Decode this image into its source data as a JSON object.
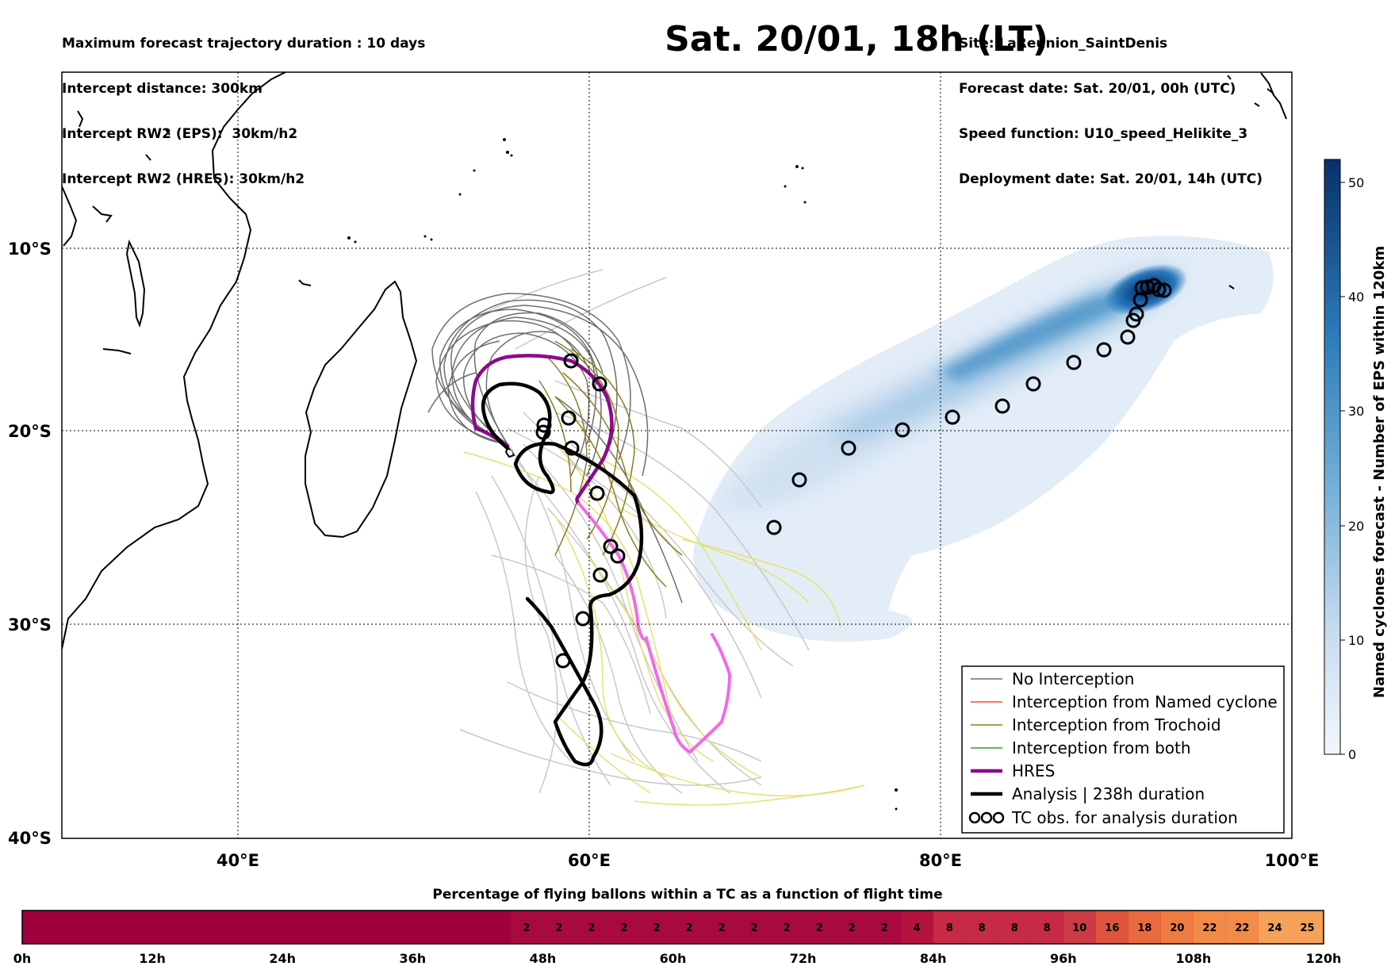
{
  "header": {
    "left": [
      "Maximum forecast trajectory duration : 10 days",
      "Intercept distance: 300km",
      "Intercept RW2 (EPS):  30km/h2",
      "Intercept RW2 (HRES): 30km/h2"
    ],
    "right": [
      "Site: LaReunion_SaintDenis",
      "Forecast date: Sat. 20/01, 00h (UTC)",
      "Speed function: U10_speed_Helikite_3",
      "Deployment date: Sat. 20/01, 14h (UTC)"
    ],
    "title": "Sat. 20/01, 18h (LT)"
  },
  "map": {
    "extent": {
      "lon": [
        30,
        100
      ],
      "lat": [
        -40,
        0
      ]
    },
    "lon_ticks": [
      {
        "value": 40,
        "label": "40°E"
      },
      {
        "value": 60,
        "label": "60°E"
      },
      {
        "value": 80,
        "label": "80°E"
      },
      {
        "value": 100,
        "label": "100°E"
      }
    ],
    "lat_ticks": [
      {
        "value": -10,
        "label": "10°S"
      },
      {
        "value": -20,
        "label": "20°S"
      },
      {
        "value": -30,
        "label": "30°S"
      },
      {
        "value": -40,
        "label": "40°S"
      }
    ],
    "gridlines": true,
    "colors": {
      "no_interception": "#6e6e6e",
      "interception_named_cyclone": "#e8561f",
      "interception_trochoid": "#8a7f1c",
      "interception_both": "#2ca02c",
      "hres": "#8b0a8b",
      "hres_late": "#f06ae8",
      "analysis": "#000000",
      "yellow_tracks": "#e8e070",
      "light_tracks": "#c8c8c8"
    }
  },
  "colorbar": {
    "label": "Named cyclones forecast - Number of EPS within 120km",
    "ticks": [
      "0",
      "10",
      "20",
      "30",
      "40",
      "50"
    ],
    "min": 0,
    "max": 52,
    "colors": [
      "#e9f1fa",
      "#08306b"
    ]
  },
  "legend": {
    "items": [
      {
        "label": "No Interception",
        "style": "thin",
        "color": "#6e6e6e"
      },
      {
        "label": "Interception from Named cyclone",
        "style": "thin",
        "color": "#e8561f"
      },
      {
        "label": "Interception from Trochoid",
        "style": "thin",
        "color": "#8a7f1c"
      },
      {
        "label": "Interception from both",
        "style": "thin",
        "color": "#2ca02c"
      },
      {
        "label": "HRES",
        "style": "thick",
        "color": "#8b0a8b"
      },
      {
        "label": "Analysis | 238h duration",
        "style": "thick",
        "color": "#000000"
      },
      {
        "label": "TC obs. for analysis duration",
        "style": "symbol",
        "color": "#000000"
      }
    ]
  },
  "timebar": {
    "title": "Percentage of flying ballons within a TC as a function of flight time",
    "tick_labels": [
      "0h",
      "12h",
      "24h",
      "36h",
      "48h",
      "60h",
      "72h",
      "84h",
      "96h",
      "108h",
      "120h"
    ],
    "values": [
      "2",
      "2",
      "2",
      "2",
      "2",
      "2",
      "2",
      "2",
      "2",
      "2",
      "2",
      "2",
      "4",
      "8",
      "8",
      "8",
      "8",
      "10",
      "16",
      "18",
      "20",
      "22",
      "22",
      "24",
      "25"
    ]
  }
}
